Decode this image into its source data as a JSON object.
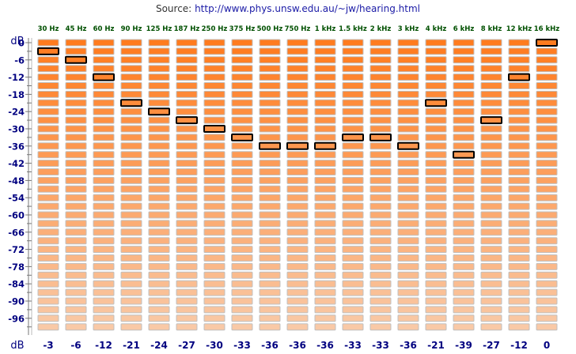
{
  "source": {
    "prefix": "Source:",
    "url": "http://www.phys.unsw.edu.au/~jw/hearing.html"
  },
  "chart_data": {
    "type": "table",
    "title": "",
    "unit_top": "dB",
    "unit_bottom": "dB",
    "frequencies": [
      "30 Hz",
      "45 Hz",
      "60 Hz",
      "90 Hz",
      "125 Hz",
      "187 Hz",
      "250 Hz",
      "375 Hz",
      "500 Hz",
      "750 Hz",
      "1 kHz",
      "1.5 kHz",
      "2 kHz",
      "3 kHz",
      "4 kHz",
      "6 kHz",
      "8 kHz",
      "12 kHz",
      "16 kHz"
    ],
    "y_ticks": [
      0,
      -6,
      -12,
      -18,
      -24,
      -30,
      -36,
      -42,
      -48,
      -54,
      -60,
      -66,
      -72,
      -78,
      -84,
      -90,
      -96
    ],
    "y_tick_labels": [
      "0",
      "-6",
      "-12",
      "-18",
      "-24",
      "-30",
      "-36",
      "-42",
      "-48",
      "-54",
      "-60",
      "-66",
      "-72",
      "-78",
      "-84",
      "-90",
      "-96"
    ],
    "ylim": [
      0,
      -99
    ],
    "level_step_db": 3,
    "selected_db": [
      -3,
      -6,
      -12,
      -21,
      -24,
      -27,
      -30,
      -33,
      -36,
      -36,
      -36,
      -33,
      -33,
      -36,
      -21,
      -39,
      -27,
      -12,
      0
    ],
    "bottom_labels": [
      "-3",
      "-6",
      "-12",
      "-21",
      "-24",
      "-27",
      "-30",
      "-33",
      "-36",
      "-36",
      "-36",
      "-33",
      "-33",
      "-36",
      "-21",
      "-39",
      "-27",
      "-12",
      "0"
    ],
    "colors": {
      "loud": "#ff7b1e",
      "quiet": "#f9c9a6",
      "cell_border": "#c0c0c0",
      "selected_border": "#000000",
      "label_text": "#000080",
      "freq_text": "#005000"
    }
  }
}
